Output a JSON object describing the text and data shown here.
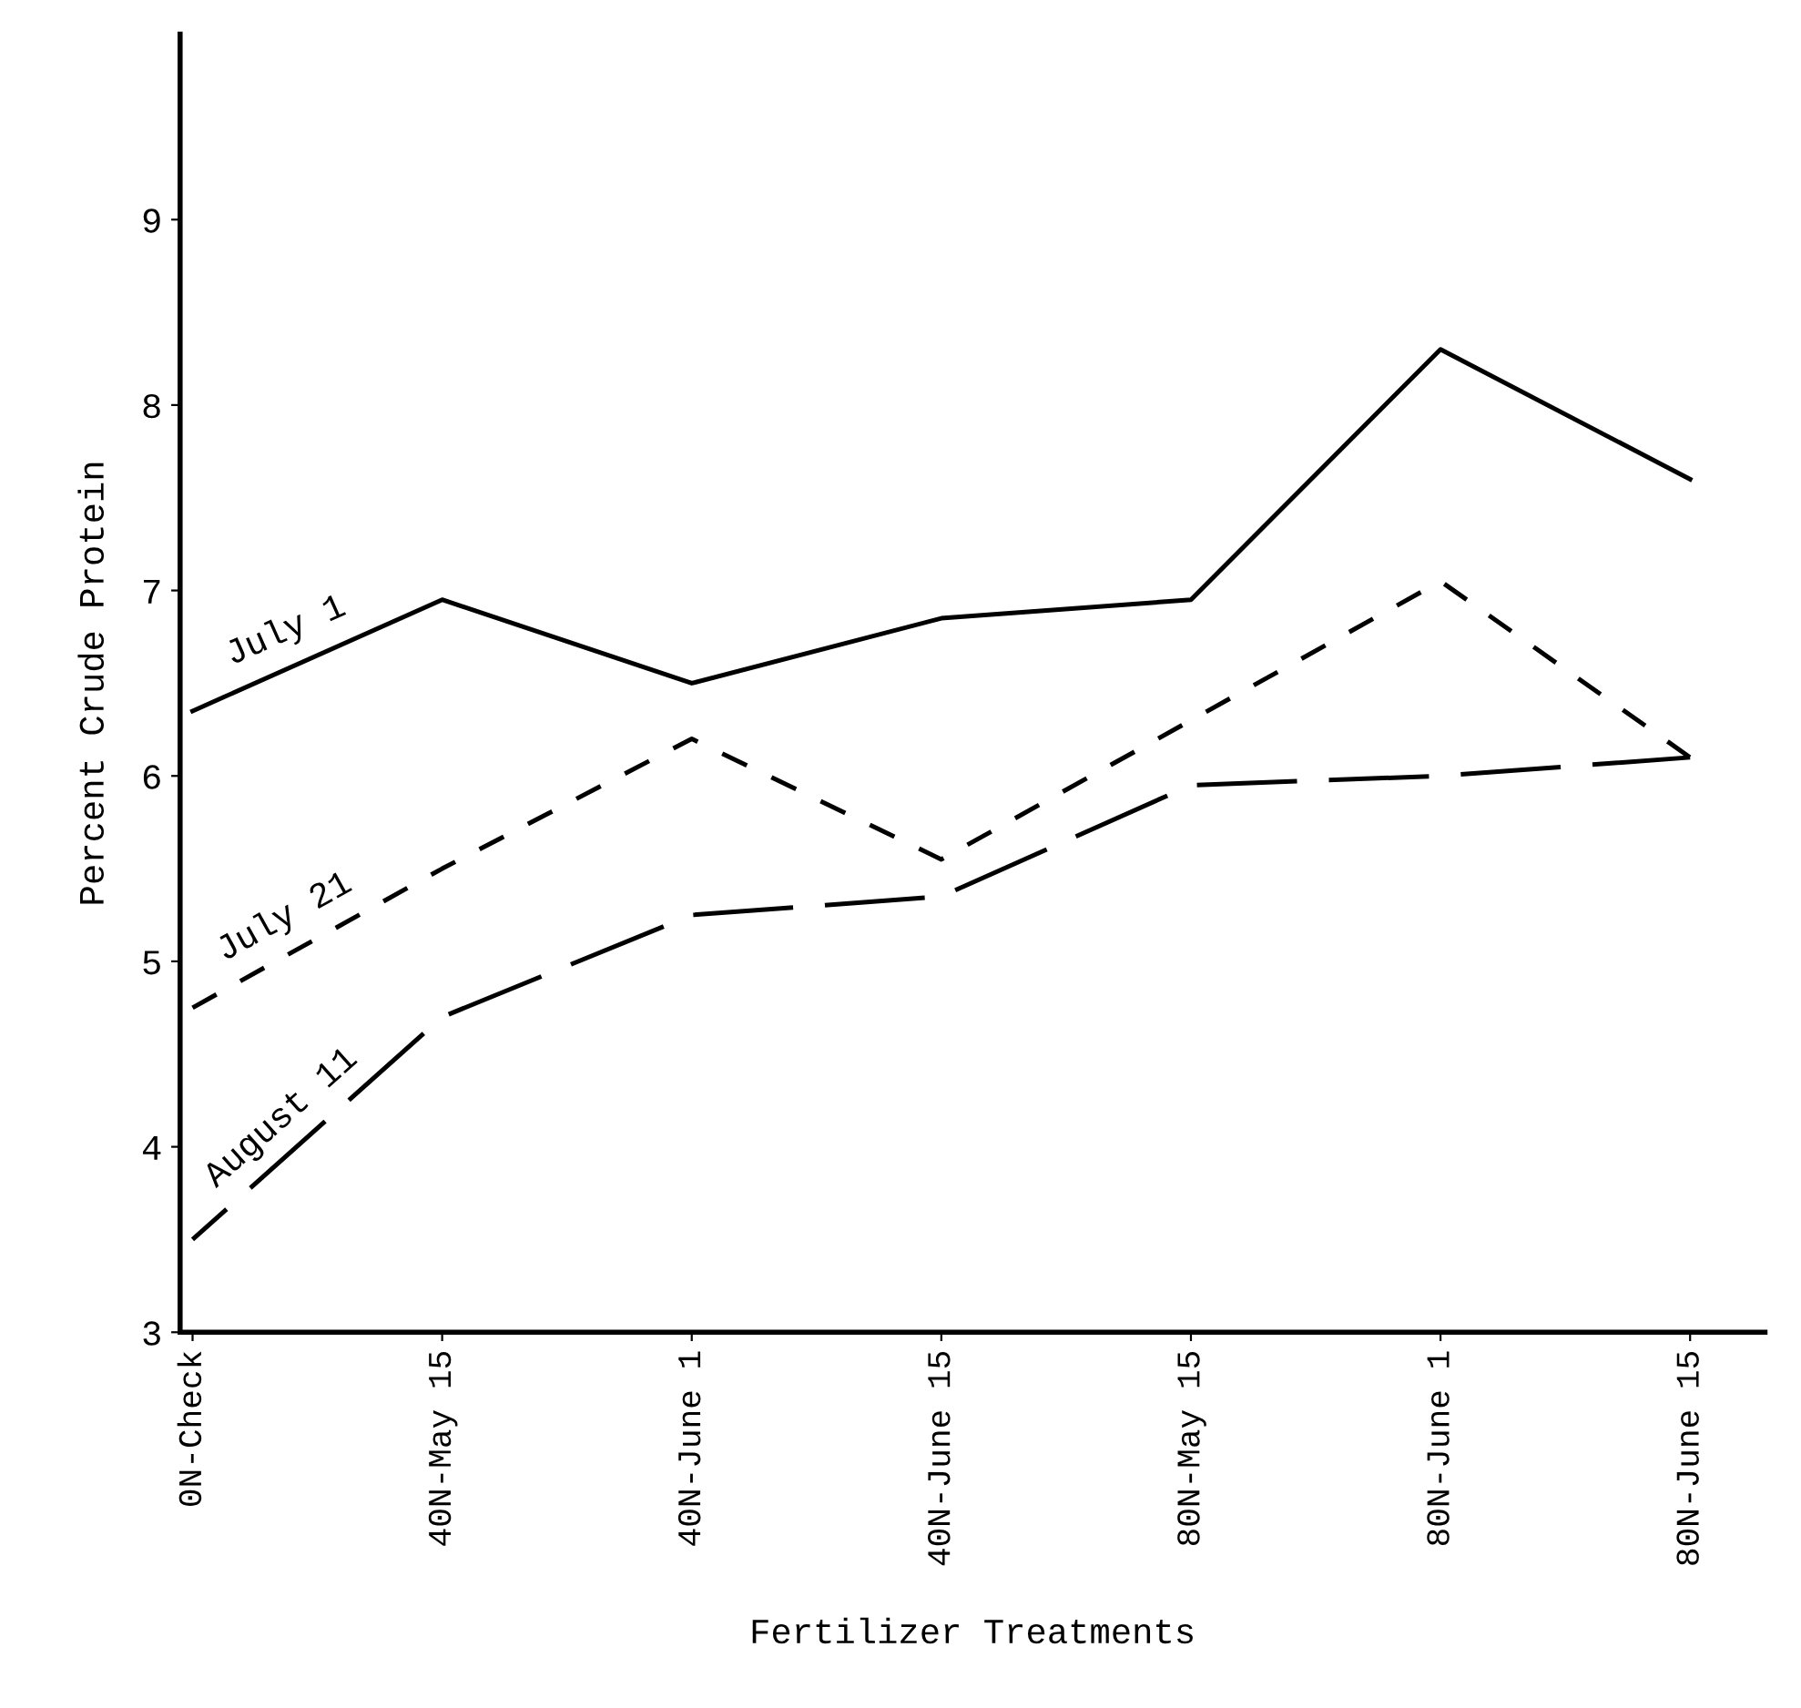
{
  "chart_data": {
    "type": "line",
    "xlabel": "Fertilizer Treatments",
    "ylabel": "Percent Crude Protein",
    "categories": [
      "0N-Check",
      "40N-May 15",
      "40N-June 1",
      "40N-June 15",
      "80N-May 15",
      "80N-June 1",
      "80N-June 15"
    ],
    "series": [
      {
        "name": "July 1",
        "color": "#000000",
        "line_style": "solid",
        "values": [
          6.35,
          6.95,
          6.5,
          6.85,
          6.95,
          8.3,
          7.6
        ]
      },
      {
        "name": "July 21",
        "color": "#000000",
        "line_style": "dashed",
        "values": [
          4.75,
          5.5,
          6.2,
          5.55,
          6.3,
          7.05,
          6.1
        ]
      },
      {
        "name": "August 11",
        "color": "#000000",
        "line_style": "longdash",
        "values": [
          3.5,
          4.7,
          5.25,
          5.35,
          5.95,
          6.0,
          6.1
        ]
      }
    ],
    "ylim": [
      3,
      10
    ],
    "yticks": [
      3,
      4,
      5,
      6,
      7,
      8,
      9
    ],
    "grid": false,
    "legend": false,
    "marker": "none"
  }
}
